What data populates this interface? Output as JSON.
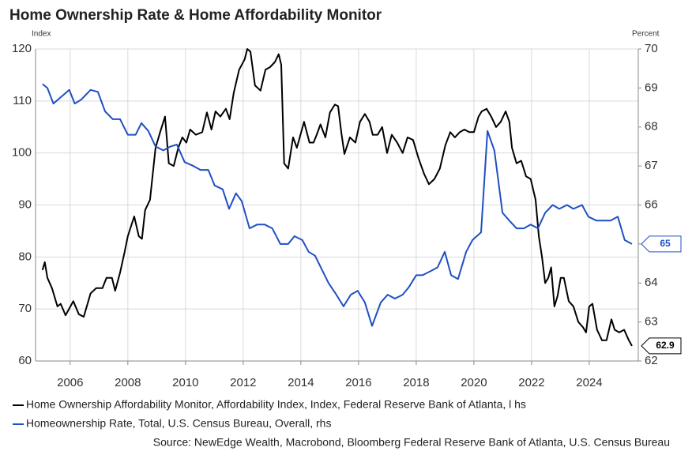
{
  "chart_data": {
    "type": "line",
    "title": "Home Ownership Rate & Home Affordability Monitor",
    "y_label": "Index",
    "y2_label": "Percent",
    "source": "Source: NewEdge Wealth, Macrobond, Bloomberg Federal Reserve Bank of Atlanta, U.S. Census Bureau",
    "xlim": [
      2004.8,
      2025.7
    ],
    "xticks": [
      2006,
      2008,
      2010,
      2012,
      2014,
      2016,
      2018,
      2020,
      2022,
      2024
    ],
    "ylim": [
      60,
      120
    ],
    "yticks": [
      60,
      70,
      80,
      90,
      100,
      110,
      120
    ],
    "y2lim": [
      62,
      70
    ],
    "y2ticks": [
      62,
      63,
      64,
      65,
      66,
      67,
      68,
      69,
      70
    ],
    "grid": true,
    "end_labels": true,
    "series": [
      {
        "name": "Home Ownership Affordability Monitor, Affordability Index, Index, Federal Reserve Bank of Atlanta, l hs",
        "color": "#000000",
        "axis": "y",
        "x": [
          2005.04,
          2005.12,
          2005.21,
          2005.37,
          2005.56,
          2005.67,
          2005.84,
          2006.11,
          2006.3,
          2006.47,
          2006.71,
          2006.9,
          2007.12,
          2007.26,
          2007.45,
          2007.56,
          2007.73,
          2007.89,
          2008.0,
          2008.22,
          2008.38,
          2008.49,
          2008.6,
          2008.77,
          2008.96,
          2009.12,
          2009.29,
          2009.42,
          2009.59,
          2009.75,
          2009.89,
          2010.03,
          2010.16,
          2010.36,
          2010.58,
          2010.74,
          2010.9,
          2011.04,
          2011.21,
          2011.4,
          2011.53,
          2011.67,
          2011.86,
          2012.05,
          2012.14,
          2012.25,
          2012.41,
          2012.6,
          2012.77,
          2012.93,
          2013.1,
          2013.23,
          2013.32,
          2013.42,
          2013.56,
          2013.73,
          2013.86,
          2014.11,
          2014.3,
          2014.44,
          2014.55,
          2014.68,
          2014.85,
          2015.01,
          2015.18,
          2015.29,
          2015.4,
          2015.51,
          2015.7,
          2015.89,
          2016.05,
          2016.22,
          2016.38,
          2016.49,
          2016.66,
          2016.82,
          2016.99,
          2017.15,
          2017.34,
          2017.53,
          2017.7,
          2017.89,
          2018.08,
          2018.27,
          2018.44,
          2018.63,
          2018.82,
          2019.01,
          2019.18,
          2019.34,
          2019.51,
          2019.67,
          2019.84,
          2020.0,
          2020.16,
          2020.27,
          2020.44,
          2020.6,
          2020.77,
          2020.93,
          2021.1,
          2021.23,
          2021.32,
          2021.48,
          2021.64,
          2021.81,
          2021.97,
          2022.14,
          2022.25,
          2022.36,
          2022.47,
          2022.58,
          2022.68,
          2022.79,
          2022.9,
          2023.01,
          2023.12,
          2023.29,
          2023.45,
          2023.62,
          2023.78,
          2023.89,
          2024.0,
          2024.11,
          2024.27,
          2024.44,
          2024.6,
          2024.77,
          2024.88,
          2025.04,
          2025.21,
          2025.37,
          2025.48
        ],
        "values": [
          77.5,
          79,
          76,
          74,
          70.5,
          71,
          68.8,
          71.5,
          69,
          68.5,
          73,
          74,
          74,
          76,
          76,
          73.5,
          77,
          81,
          84,
          87.8,
          84,
          83.5,
          89,
          91,
          101,
          104,
          107,
          98,
          97.5,
          101,
          103,
          102,
          104.5,
          103.5,
          104,
          107.8,
          104.5,
          108,
          107,
          108.5,
          106.5,
          111.5,
          116,
          118,
          120,
          119.5,
          113,
          112,
          116,
          116.5,
          117.5,
          119,
          117,
          98,
          97,
          103,
          101,
          106,
          102,
          102,
          103.5,
          105.5,
          103,
          107.8,
          109.3,
          109,
          104,
          99.8,
          103,
          102,
          106,
          107.5,
          106,
          103.5,
          103.5,
          105,
          100,
          103.5,
          102,
          100,
          103,
          102.5,
          99,
          96,
          94,
          95,
          97,
          101.5,
          104,
          103,
          104,
          104.5,
          104,
          104,
          107,
          108,
          108.5,
          107,
          105,
          106,
          108,
          106,
          101,
          98,
          98.5,
          95.5,
          95,
          91,
          84,
          80,
          75,
          76,
          78,
          70.5,
          72.5,
          76,
          76,
          71.5,
          70.5,
          67.5,
          66.5,
          65.5,
          70.5,
          71,
          66,
          64,
          64,
          68,
          66,
          65.5,
          66,
          64,
          62.9
        ]
      },
      {
        "name": "Homeownership Rate, Total, U.S. Census Bureau, Overall, rhs",
        "color": "#1f4fc4",
        "axis": "y2",
        "x": [
          2005.04,
          2005.21,
          2005.42,
          2005.97,
          2006.16,
          2006.38,
          2006.71,
          2006.96,
          2007.21,
          2007.48,
          2007.73,
          2008.0,
          2008.27,
          2008.47,
          2008.71,
          2008.96,
          2009.23,
          2009.48,
          2009.7,
          2009.97,
          2010.27,
          2010.52,
          2010.79,
          2011.01,
          2011.29,
          2011.51,
          2011.75,
          2011.95,
          2012.22,
          2012.49,
          2012.74,
          2013.01,
          2013.29,
          2013.56,
          2013.78,
          2014.05,
          2014.27,
          2014.49,
          2014.96,
          2015.23,
          2015.48,
          2015.73,
          2015.97,
          2016.22,
          2016.47,
          2016.77,
          2017.01,
          2017.26,
          2017.53,
          2017.75,
          2018.0,
          2018.22,
          2018.49,
          2018.74,
          2018.99,
          2019.21,
          2019.45,
          2019.73,
          2019.95,
          2020.25,
          2020.47,
          2020.71,
          2020.99,
          2021.23,
          2021.48,
          2021.73,
          2021.97,
          2022.22,
          2022.47,
          2022.73,
          2022.96,
          2023.23,
          2023.45,
          2023.75,
          2023.97,
          2024.25,
          2024.52,
          2024.74,
          2024.99,
          2025.23,
          2025.48
        ],
        "values": [
          69.1,
          69,
          68.6,
          68.95,
          68.6,
          68.7,
          68.95,
          68.9,
          68.4,
          68.2,
          68.2,
          67.8,
          67.8,
          68.1,
          67.9,
          67.5,
          67.4,
          67.5,
          67.55,
          67.1,
          67.0,
          66.9,
          66.9,
          66.5,
          66.4,
          65.9,
          66.3,
          66.1,
          65.4,
          65.5,
          65.5,
          65.4,
          65.0,
          65.0,
          65.2,
          65.1,
          64.8,
          64.7,
          64.0,
          63.7,
          63.4,
          63.7,
          63.8,
          63.5,
          62.9,
          63.5,
          63.7,
          63.6,
          63.7,
          63.9,
          64.2,
          64.2,
          64.3,
          64.4,
          64.8,
          64.2,
          64.1,
          64.8,
          65.1,
          65.3,
          67.9,
          67.4,
          65.8,
          65.6,
          65.4,
          65.4,
          65.5,
          65.4,
          65.8,
          66.0,
          65.9,
          66.0,
          65.9,
          66.0,
          65.7,
          65.6,
          65.6,
          65.6,
          65.7,
          65.1,
          65
        ]
      }
    ]
  }
}
